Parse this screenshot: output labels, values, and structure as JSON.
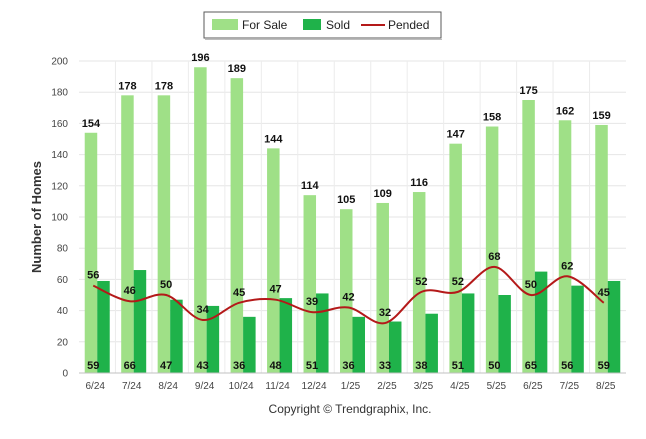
{
  "chart_data": {
    "type": "bar",
    "title": "",
    "xlabel": "",
    "ylabel": "Number of Homes",
    "ylim": [
      0,
      200
    ],
    "yticks": [
      0,
      20,
      40,
      60,
      80,
      100,
      120,
      140,
      160,
      180,
      200
    ],
    "grid": true,
    "legend_position": "top-center",
    "categories": [
      "6/24",
      "7/24",
      "8/24",
      "9/24",
      "10/24",
      "11/24",
      "12/24",
      "1/25",
      "2/25",
      "3/25",
      "4/25",
      "5/25",
      "6/25",
      "7/25",
      "8/25"
    ],
    "series": [
      {
        "name": "For Sale",
        "type": "bar",
        "color": "#9fe087",
        "values": [
          154,
          178,
          178,
          196,
          189,
          144,
          114,
          105,
          109,
          116,
          147,
          158,
          175,
          162,
          159
        ]
      },
      {
        "name": "Sold",
        "type": "bar",
        "color": "#1fb24a",
        "values": [
          59,
          66,
          47,
          43,
          36,
          48,
          51,
          36,
          33,
          38,
          51,
          50,
          65,
          56,
          59
        ]
      },
      {
        "name": "Pended",
        "type": "line",
        "color": "#b41919",
        "values": [
          56,
          46,
          50,
          34,
          45,
          47,
          39,
          42,
          32,
          52,
          52,
          68,
          50,
          62,
          45
        ]
      }
    ]
  },
  "footer": {
    "copyright": "Copyright © Trendgraphix, Inc."
  }
}
